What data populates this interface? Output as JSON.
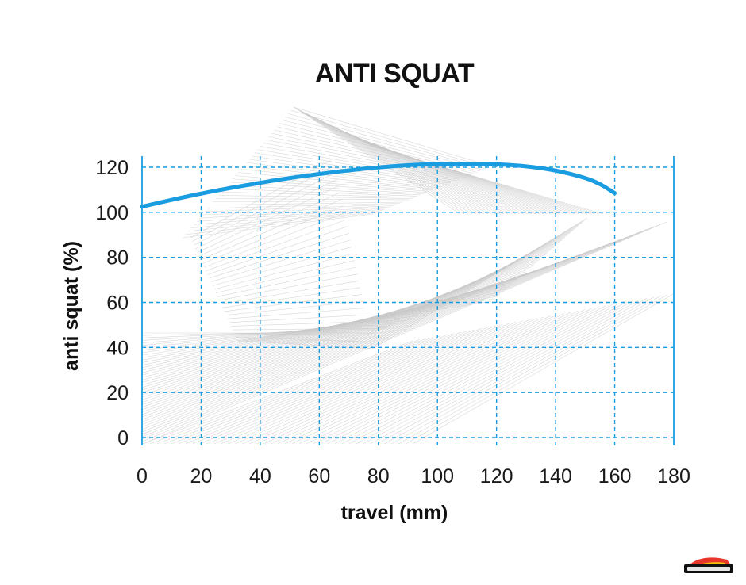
{
  "chart_data": {
    "type": "line",
    "title": "ANTI SQUAT",
    "xlabel": "travel (mm)",
    "ylabel": "anti squat (%)",
    "xlim": [
      0,
      180
    ],
    "ylim": [
      0,
      120
    ],
    "x_ticks": [
      "0",
      "20",
      "40",
      "60",
      "80",
      "100",
      "120",
      "140",
      "160",
      "180"
    ],
    "y_ticks": [
      "0",
      "20",
      "40",
      "60",
      "80",
      "100",
      "120"
    ],
    "grid": true,
    "legend": "none",
    "series": [
      {
        "x": [
          0,
          10,
          20,
          30,
          40,
          50,
          60,
          70,
          80,
          90,
          100,
          110,
          120,
          130,
          140,
          150,
          155,
          160
        ],
        "y": [
          102.5,
          105.5,
          108.3,
          110.8,
          113.1,
          115.2,
          117.0,
          118.6,
          119.9,
          120.9,
          121.4,
          121.6,
          121.3,
          120.4,
          118.5,
          115.2,
          112.5,
          108.5
        ]
      }
    ]
  },
  "colors": {
    "line": "#1a9de0",
    "grid": "#1a9de0",
    "text": "#111111",
    "background_lines": "#c9c9c9"
  }
}
